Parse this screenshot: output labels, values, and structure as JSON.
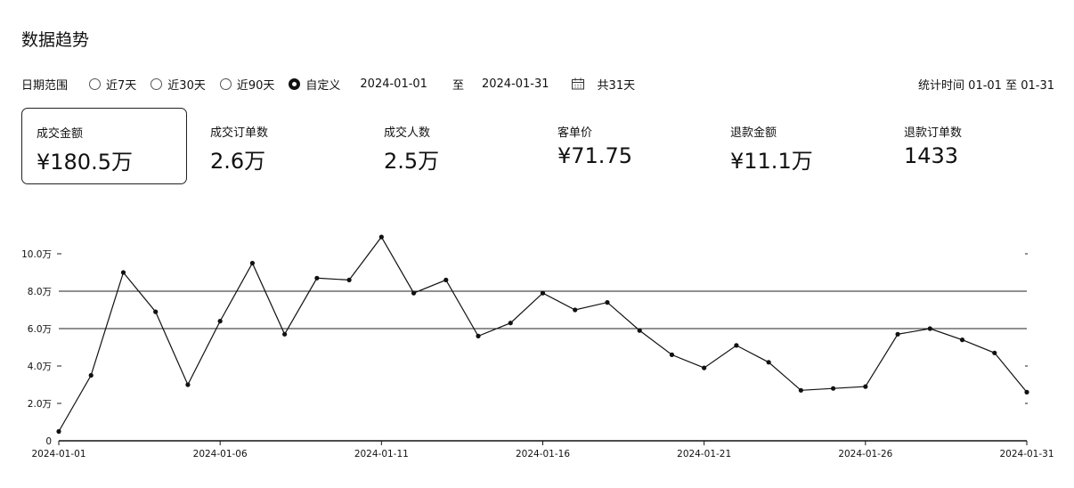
{
  "header": {
    "title": "数据趋势"
  },
  "filters": {
    "label": "日期范围",
    "options": [
      {
        "label": "近7天",
        "selected": false
      },
      {
        "label": "近30天",
        "selected": false
      },
      {
        "label": "近90天",
        "selected": false
      },
      {
        "label": "自定义",
        "selected": true
      }
    ],
    "start_date": "2024-01-01",
    "separator": "至",
    "end_date": "2024-01-31",
    "calendar_icon": "calendar-icon",
    "total_days": "共31天",
    "stat_time": "统计时间 01-01 至 01-31"
  },
  "metrics": [
    {
      "label": "成交金额",
      "value": "¥180.5万",
      "active": true
    },
    {
      "label": "成交订单数",
      "value": "2.6万",
      "active": false
    },
    {
      "label": "成交人数",
      "value": "2.5万",
      "active": false
    },
    {
      "label": "客单价",
      "value": "¥71.75",
      "active": false
    },
    {
      "label": "退款金额",
      "value": "¥11.1万",
      "active": false
    },
    {
      "label": "退款订单数",
      "value": "1433",
      "active": false
    }
  ],
  "chart_data": {
    "type": "line",
    "title": "",
    "xlabel": "",
    "ylabel": "",
    "x": [
      "2024-01-01",
      "2024-01-02",
      "2024-01-03",
      "2024-01-04",
      "2024-01-05",
      "2024-01-06",
      "2024-01-07",
      "2024-01-08",
      "2024-01-09",
      "2024-01-10",
      "2024-01-11",
      "2024-01-12",
      "2024-01-13",
      "2024-01-14",
      "2024-01-15",
      "2024-01-16",
      "2024-01-17",
      "2024-01-18",
      "2024-01-19",
      "2024-01-20",
      "2024-01-21",
      "2024-01-22",
      "2024-01-23",
      "2024-01-24",
      "2024-01-25",
      "2024-01-26",
      "2024-01-27",
      "2024-01-28",
      "2024-01-29",
      "2024-01-30",
      "2024-01-31"
    ],
    "series": [
      {
        "values": [
          0.5,
          3.5,
          9.0,
          6.9,
          3.0,
          6.4,
          9.5,
          5.7,
          8.7,
          8.6,
          10.9,
          7.9,
          8.6,
          5.6,
          6.3,
          7.9,
          7.0,
          7.4,
          5.9,
          4.6,
          3.9,
          5.1,
          4.2,
          2.7,
          2.8,
          2.9,
          5.7,
          6.0,
          5.4,
          4.7,
          2.6
        ]
      }
    ],
    "ylim": [
      0,
      10
    ],
    "y_ticks": [
      0,
      2,
      4,
      6,
      8,
      10
    ],
    "y_tick_labels": [
      "0",
      "2.0万",
      "4.0万",
      "6.0万",
      "8.0万",
      "10.0万"
    ],
    "x_tick_labels": [
      "2024-01-01",
      "2024-01-06",
      "2024-01-11",
      "2024-01-16",
      "2024-01-21",
      "2024-01-26",
      "2024-01-31"
    ],
    "grid": true,
    "legend": "none"
  }
}
